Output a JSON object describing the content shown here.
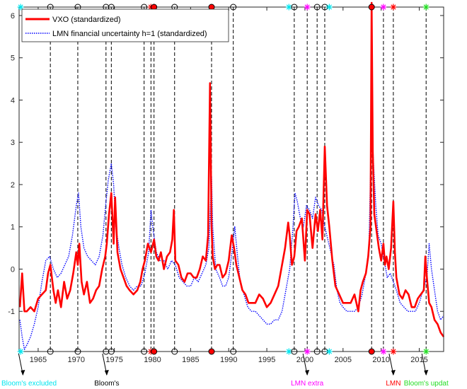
{
  "chart_data": {
    "type": "line",
    "title": "",
    "xlabel": "",
    "ylabel": "",
    "xlim": [
      1962.5,
      2018.2
    ],
    "ylim": [
      -1.95,
      6.2
    ],
    "x_ticks": [
      1965,
      1970,
      1975,
      1980,
      1985,
      1990,
      1995,
      2000,
      2005,
      2010,
      2015
    ],
    "y_ticks": [
      -1,
      0,
      1,
      2,
      3,
      4,
      5,
      6
    ],
    "grid": false,
    "legend_position": "top-left",
    "series": [
      {
        "name": "VXO (standardized)",
        "color": "#ff0000",
        "style": "solid",
        "x": [
          1962.6,
          1962.9,
          1963.2,
          1963.5,
          1964.0,
          1964.5,
          1965.0,
          1965.5,
          1966.0,
          1966.3,
          1966.6,
          1967.0,
          1967.3,
          1967.6,
          1968.0,
          1968.4,
          1968.8,
          1969.2,
          1969.6,
          1970.0,
          1970.2,
          1970.4,
          1970.7,
          1971.0,
          1971.4,
          1971.8,
          1972.2,
          1972.6,
          1973.0,
          1973.4,
          1973.8,
          1974.0,
          1974.3,
          1974.6,
          1974.9,
          1975.1,
          1975.4,
          1975.8,
          1976.2,
          1976.6,
          1977.0,
          1977.5,
          1978.0,
          1978.4,
          1978.7,
          1979.0,
          1979.4,
          1979.8,
          1980.2,
          1980.5,
          1980.8,
          1981.1,
          1981.5,
          1981.9,
          1982.3,
          1982.6,
          1982.8,
          1983.0,
          1983.4,
          1983.8,
          1984.2,
          1984.6,
          1985.0,
          1985.4,
          1985.8,
          1986.2,
          1986.6,
          1987.0,
          1987.3,
          1987.55,
          1987.75,
          1987.9,
          1988.2,
          1988.5,
          1988.8,
          1989.2,
          1989.6,
          1990.0,
          1990.4,
          1990.7,
          1991.0,
          1991.4,
          1991.8,
          1992.2,
          1992.6,
          1993.0,
          1993.5,
          1994.0,
          1994.5,
          1995.0,
          1995.5,
          1996.0,
          1996.5,
          1997.0,
          1997.4,
          1997.8,
          1998.0,
          1998.3,
          1998.6,
          1998.9,
          1999.2,
          1999.6,
          2000.0,
          2000.3,
          2000.6,
          2001.0,
          2001.4,
          2001.7,
          2002.0,
          2002.3,
          2002.6,
          2002.9,
          2003.2,
          2003.6,
          2004.0,
          2004.5,
          2005.0,
          2005.5,
          2006.0,
          2006.5,
          2007.0,
          2007.3,
          2007.6,
          2008.0,
          2008.3,
          2008.6,
          2008.75,
          2008.9,
          2009.1,
          2009.4,
          2009.7,
          2010.0,
          2010.3,
          2010.5,
          2010.7,
          2011.0,
          2011.3,
          2011.6,
          2011.8,
          2012.0,
          2012.4,
          2012.8,
          2013.2,
          2013.6,
          2014.0,
          2014.4,
          2014.8,
          2015.2,
          2015.6,
          2015.8,
          2016.0,
          2016.3,
          2016.6,
          2017.0,
          2017.4,
          2017.8,
          2018.2
        ],
        "y": [
          -0.9,
          -0.1,
          -1.0,
          -1.0,
          -0.9,
          -1.0,
          -0.7,
          -0.6,
          -0.5,
          -0.1,
          0.1,
          -0.5,
          -0.8,
          -0.5,
          -0.9,
          -0.3,
          -0.7,
          -0.5,
          -0.1,
          0.4,
          0.1,
          0.6,
          -0.3,
          -0.6,
          -0.3,
          -0.8,
          -0.7,
          -0.5,
          -0.4,
          0.0,
          0.3,
          0.6,
          1.3,
          1.8,
          0.6,
          1.7,
          0.4,
          0.0,
          -0.2,
          -0.4,
          -0.5,
          -0.6,
          -0.5,
          -0.3,
          0.0,
          0.2,
          0.6,
          0.4,
          0.7,
          0.3,
          0.2,
          0.4,
          0.0,
          0.3,
          0.4,
          0.7,
          1.4,
          0.2,
          0.1,
          -0.2,
          -0.3,
          -0.1,
          -0.1,
          -0.2,
          -0.2,
          0.0,
          0.3,
          0.2,
          0.8,
          4.4,
          1.0,
          0.3,
          0.0,
          0.1,
          0.1,
          -0.2,
          -0.1,
          0.2,
          0.8,
          0.5,
          0.1,
          -0.2,
          -0.5,
          -0.6,
          -0.8,
          -0.8,
          -0.8,
          -0.6,
          -0.7,
          -0.9,
          -0.8,
          -0.6,
          -0.4,
          0.1,
          0.5,
          1.1,
          0.8,
          0.1,
          0.3,
          0.9,
          1.0,
          1.2,
          0.2,
          1.4,
          1.3,
          0.5,
          1.3,
          0.9,
          1.4,
          0.7,
          2.9,
          1.5,
          1.0,
          0.2,
          -0.4,
          -0.6,
          -0.8,
          -0.8,
          -0.8,
          -0.6,
          -1.0,
          -0.5,
          -0.3,
          -0.1,
          0.3,
          1.0,
          6.3,
          2.8,
          1.3,
          0.9,
          0.5,
          0.2,
          0.6,
          0.1,
          0.3,
          0.0,
          0.5,
          1.6,
          0.4,
          -0.2,
          -0.6,
          -0.7,
          -0.5,
          -0.6,
          -0.9,
          -0.9,
          -0.7,
          -0.6,
          -0.5,
          0.3,
          -0.2,
          -0.8,
          -0.9,
          -1.2,
          -1.3,
          -1.5,
          -1.6
        ]
      },
      {
        "name": "LMN financial uncertainty h=1 (standardized)",
        "color": "#0000ff",
        "style": "dotted",
        "x": [
          1962.6,
          1962.9,
          1963.2,
          1963.5,
          1964.0,
          1964.5,
          1965.0,
          1965.5,
          1966.0,
          1966.5,
          1967.0,
          1967.5,
          1968.0,
          1968.5,
          1969.0,
          1969.5,
          1970.0,
          1970.3,
          1970.6,
          1971.0,
          1971.5,
          1972.0,
          1972.5,
          1973.0,
          1973.5,
          1973.9,
          1974.2,
          1974.6,
          1974.9,
          1975.2,
          1975.6,
          1976.0,
          1976.5,
          1977.0,
          1977.5,
          1978.0,
          1978.5,
          1979.0,
          1979.5,
          1979.8,
          1980.1,
          1980.5,
          1981.0,
          1981.5,
          1982.0,
          1982.5,
          1983.0,
          1983.5,
          1984.0,
          1984.5,
          1985.0,
          1985.5,
          1986.0,
          1986.5,
          1987.0,
          1987.4,
          1987.75,
          1987.9,
          1988.3,
          1988.8,
          1989.2,
          1989.6,
          1990.0,
          1990.5,
          1990.8,
          1991.1,
          1991.5,
          1992.0,
          1992.5,
          1993.0,
          1993.5,
          1994.0,
          1994.5,
          1995.0,
          1995.5,
          1996.0,
          1996.5,
          1997.0,
          1997.5,
          1998.0,
          1998.4,
          1998.7,
          1999.0,
          1999.4,
          1999.8,
          2000.2,
          2000.6,
          2001.0,
          2001.4,
          2001.8,
          2002.2,
          2002.6,
          2003.0,
          2003.4,
          2003.8,
          2004.2,
          2004.6,
          2005.0,
          2005.5,
          2006.0,
          2006.5,
          2007.0,
          2007.5,
          2008.0,
          2008.4,
          2008.75,
          2009.0,
          2009.3,
          2009.6,
          2010.0,
          2010.4,
          2010.8,
          2011.2,
          2011.6,
          2012.0,
          2012.5,
          2013.0,
          2013.5,
          2014.0,
          2014.5,
          2015.0,
          2015.5,
          2016.0,
          2016.3,
          2016.6,
          2017.0,
          2017.4,
          2017.8,
          2018.2
        ],
        "y": [
          -1.2,
          -1.6,
          -1.9,
          -1.8,
          -1.6,
          -1.3,
          -0.9,
          -0.3,
          0.2,
          0.3,
          0.0,
          -0.2,
          -0.1,
          0.1,
          0.3,
          0.8,
          1.5,
          1.8,
          1.0,
          0.5,
          0.3,
          0.2,
          0.1,
          0.3,
          0.8,
          1.6,
          2.1,
          2.5,
          2.0,
          1.0,
          0.5,
          0.1,
          -0.2,
          -0.4,
          -0.5,
          -0.4,
          -0.4,
          -0.1,
          0.4,
          1.4,
          0.9,
          0.4,
          0.2,
          0.2,
          0.0,
          0.2,
          0.1,
          -0.2,
          -0.3,
          -0.4,
          -0.4,
          -0.2,
          -0.3,
          -0.1,
          0.1,
          0.5,
          2.2,
          1.0,
          0.0,
          -0.2,
          -0.4,
          -0.4,
          -0.2,
          0.5,
          1.0,
          0.4,
          -0.3,
          -0.6,
          -0.9,
          -1.0,
          -1.0,
          -1.1,
          -1.2,
          -1.3,
          -1.3,
          -1.2,
          -1.2,
          -1.0,
          -0.5,
          0.0,
          0.9,
          1.8,
          1.6,
          1.2,
          1.0,
          1.5,
          1.4,
          1.2,
          1.7,
          1.5,
          1.4,
          1.0,
          0.7,
          0.4,
          0.1,
          -0.5,
          -0.8,
          -0.9,
          -1.0,
          -1.0,
          -1.0,
          -0.9,
          -0.6,
          -0.1,
          0.5,
          3.5,
          2.5,
          1.5,
          0.8,
          0.6,
          0.2,
          -0.2,
          -0.1,
          -0.3,
          -0.5,
          -0.8,
          -0.9,
          -1.0,
          -1.0,
          -1.0,
          -0.8,
          -0.5,
          -0.2,
          0.6,
          0.0,
          -0.5,
          -1.0,
          -1.2,
          -1.1
        ]
      }
    ],
    "event_lines": [
      {
        "x": 1966.6
      },
      {
        "x": 1970.2
      },
      {
        "x": 1973.9
      },
      {
        "x": 1974.6
      },
      {
        "x": 1978.9
      },
      {
        "x": 1979.8
      },
      {
        "x": 1980.2
      },
      {
        "x": 1982.9
      },
      {
        "x": 1987.75
      },
      {
        "x": 1990.6
      },
      {
        "x": 1998.6
      },
      {
        "x": 2000.3
      },
      {
        "x": 2001.6
      },
      {
        "x": 2002.6
      },
      {
        "x": 2008.75
      },
      {
        "x": 2010.3
      },
      {
        "x": 2011.6
      },
      {
        "x": 2015.9
      }
    ],
    "edge_markers": [
      {
        "x": 1962.7,
        "kind": "cyan-star"
      },
      {
        "x": 1966.6,
        "kind": "black-circle"
      },
      {
        "x": 1970.2,
        "kind": "black-circle"
      },
      {
        "x": 1973.9,
        "kind": "black-circle"
      },
      {
        "x": 1974.6,
        "kind": "black-circle"
      },
      {
        "x": 1978.9,
        "kind": "black-circle"
      },
      {
        "x": 1979.8,
        "kind": "red-star"
      },
      {
        "x": 1980.2,
        "kind": "red-circle"
      },
      {
        "x": 1982.9,
        "kind": "black-circle"
      },
      {
        "x": 1987.75,
        "kind": "red-circle"
      },
      {
        "x": 1990.6,
        "kind": "black-circle"
      },
      {
        "x": 1997.9,
        "kind": "cyan-star"
      },
      {
        "x": 1998.6,
        "kind": "black-circle"
      },
      {
        "x": 2000.3,
        "kind": "magenta-star"
      },
      {
        "x": 2001.6,
        "kind": "black-circle"
      },
      {
        "x": 2002.6,
        "kind": "black-circle"
      },
      {
        "x": 2003.2,
        "kind": "cyan-star"
      },
      {
        "x": 2008.75,
        "kind": "red-circle"
      },
      {
        "x": 2010.3,
        "kind": "magenta-star"
      },
      {
        "x": 2011.6,
        "kind": "red-star"
      },
      {
        "x": 2015.9,
        "kind": "green-star"
      }
    ],
    "bottom_annotations": [
      {
        "text": "Bloom's excluded",
        "color": "#00e5ee",
        "x": 1963.0
      },
      {
        "text": "Bloom's",
        "color": "#000000",
        "x": 1974.0
      },
      {
        "text": "LMN extra",
        "color": "#ff00ff",
        "x": 2000.3
      },
      {
        "text": "LMN",
        "color": "#ff0000",
        "x": 2011.6
      },
      {
        "text": "Bloom's updat",
        "color": "#22dd22",
        "x": 2015.9
      }
    ]
  }
}
